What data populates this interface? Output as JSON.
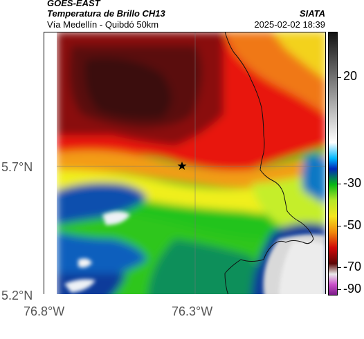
{
  "header": {
    "satellite": "GOES-EAST",
    "product": "Temperatura de Brillo CH13",
    "location": "Vía Medellín - Quibdó 50km",
    "org": "SIATA",
    "datetime": "2025-02-02 18:39"
  },
  "axes": {
    "lat_labels": [
      "5.7°N",
      "5.2°N"
    ],
    "lon_labels": [
      "76.8°W",
      "76.3°W"
    ]
  },
  "colorbar": {
    "labels": [
      "20",
      "-30",
      "-50",
      "-70",
      "-90"
    ]
  },
  "marker": {
    "icon": "star-icon"
  }
}
